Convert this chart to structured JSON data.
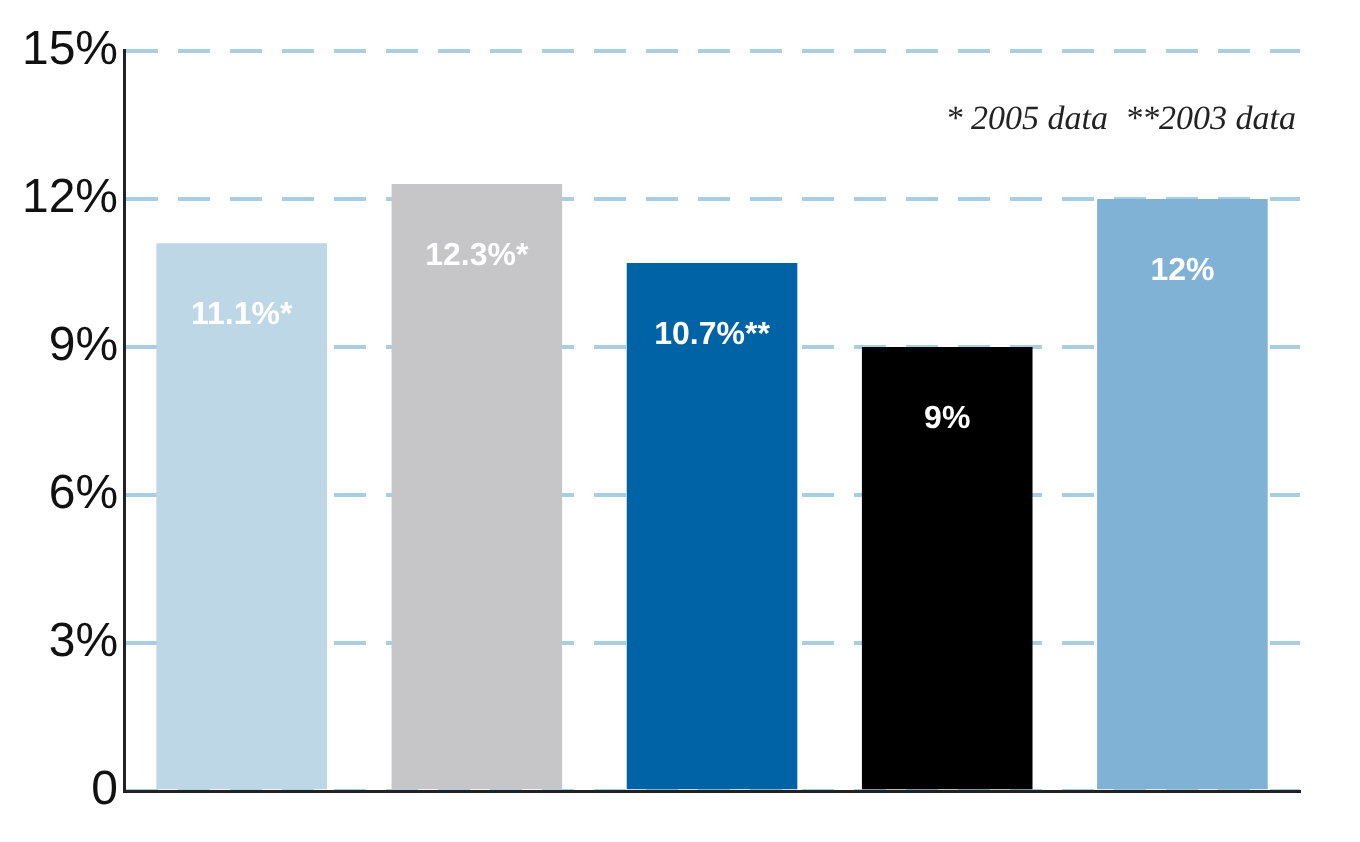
{
  "chart_data": {
    "type": "bar",
    "categories": [
      null,
      null,
      null,
      null,
      null
    ],
    "values": [
      11.1,
      12.3,
      10.7,
      9,
      12
    ],
    "colors": [
      "#bdd7e7",
      "#c6c6c8",
      "#0063a6",
      "#000000",
      "#7fb2d4"
    ],
    "value_labels": [
      "11.1%*",
      "12.3%*",
      "10.7%**",
      "9%",
      "12%"
    ],
    "ylim": [
      0,
      15
    ],
    "yticks": [
      {
        "value": 0,
        "label": "0"
      },
      {
        "value": 3,
        "label": "3%"
      },
      {
        "value": 6,
        "label": "6%"
      },
      {
        "value": 9,
        "label": "9%"
      },
      {
        "value": 12,
        "label": "12%"
      },
      {
        "value": 15,
        "label": "15%"
      }
    ],
    "grid": "y",
    "annotations": [
      "* 2005 data  **2003 data"
    ]
  }
}
